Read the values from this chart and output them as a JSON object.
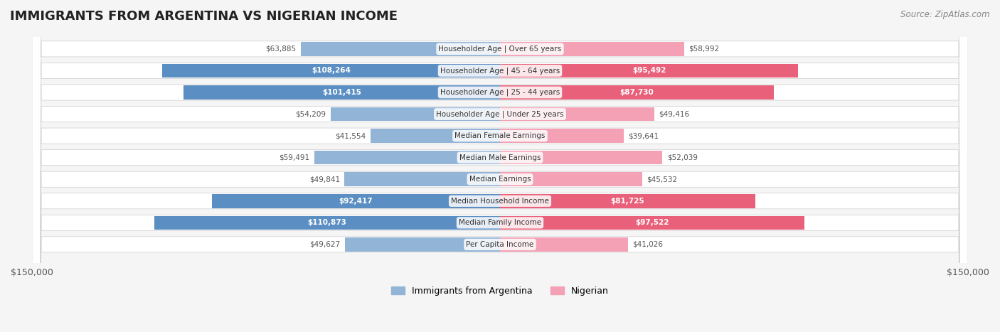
{
  "title": "IMMIGRANTS FROM ARGENTINA VS NIGERIAN INCOME",
  "source": "Source: ZipAtlas.com",
  "categories": [
    "Per Capita Income",
    "Median Family Income",
    "Median Household Income",
    "Median Earnings",
    "Median Male Earnings",
    "Median Female Earnings",
    "Householder Age | Under 25 years",
    "Householder Age | 25 - 44 years",
    "Householder Age | 45 - 64 years",
    "Householder Age | Over 65 years"
  ],
  "argentina_values": [
    49627,
    110873,
    92417,
    49841,
    59491,
    41554,
    54209,
    101415,
    108264,
    63885
  ],
  "nigerian_values": [
    41026,
    97522,
    81725,
    45532,
    52039,
    39641,
    49416,
    87730,
    95492,
    58992
  ],
  "argentina_labels": [
    "$49,627",
    "$110,873",
    "$92,417",
    "$49,841",
    "$59,491",
    "$41,554",
    "$54,209",
    "$101,415",
    "$108,264",
    "$63,885"
  ],
  "nigerian_labels": [
    "$41,026",
    "$97,522",
    "$81,725",
    "$45,532",
    "$52,039",
    "$39,641",
    "$49,416",
    "$87,730",
    "$95,492",
    "$58,992"
  ],
  "argentina_color": "#92b4d7",
  "argentina_color_dark": "#5b8fc4",
  "nigerian_color": "#f4a0b5",
  "nigerian_color_dark": "#e8607a",
  "max_value": 150000,
  "background_color": "#f5f5f5",
  "row_bg_color": "#ffffff",
  "label_threshold": 80000,
  "argentina_legend": "Immigrants from Argentina",
  "nigerian_legend": "Nigerian"
}
